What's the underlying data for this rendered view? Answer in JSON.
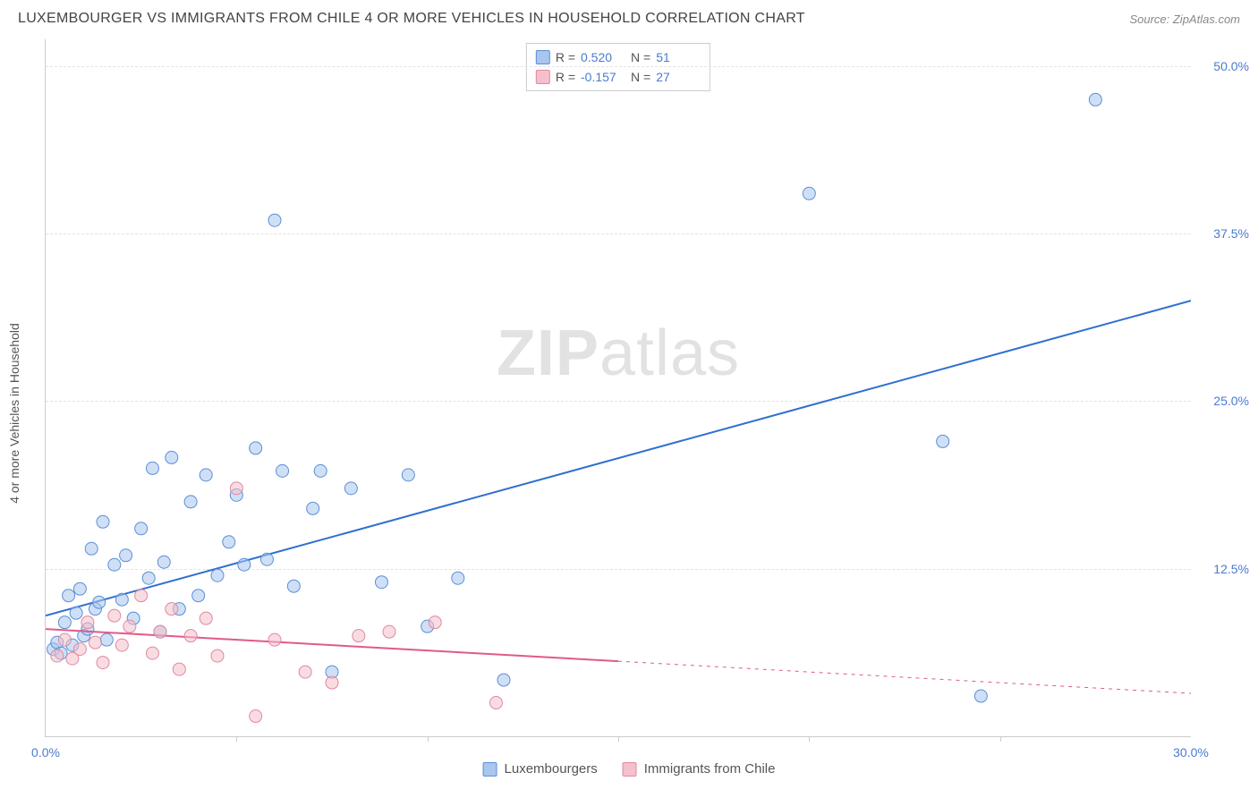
{
  "header": {
    "title": "LUXEMBOURGER VS IMMIGRANTS FROM CHILE 4 OR MORE VEHICLES IN HOUSEHOLD CORRELATION CHART",
    "source": "Source: ZipAtlas.com"
  },
  "chart": {
    "type": "scatter",
    "ylabel": "4 or more Vehicles in Household",
    "watermark": "ZIPatlas",
    "xlim": [
      0,
      30
    ],
    "ylim": [
      0,
      52
    ],
    "yticks": [
      {
        "v": 12.5,
        "label": "12.5%"
      },
      {
        "v": 25.0,
        "label": "25.0%"
      },
      {
        "v": 37.5,
        "label": "37.5%"
      },
      {
        "v": 50.0,
        "label": "50.0%"
      }
    ],
    "xticks_major": [
      {
        "v": 0,
        "label": "0.0%"
      },
      {
        "v": 30,
        "label": "30.0%"
      }
    ],
    "xticks_minor": [
      5,
      10,
      15,
      20,
      25
    ],
    "background_color": "#ffffff",
    "grid_color": "#e3e3e3",
    "axis_color": "#cccccc",
    "tick_label_color": "#4a7bd0",
    "marker_radius": 7,
    "marker_opacity": 0.55,
    "series": [
      {
        "id": "luxembourgers",
        "label": "Luxembourgers",
        "color_fill": "#a8c6ee",
        "color_stroke": "#5b8fd6",
        "trend_color": "#2f6fd0",
        "trend_width": 2,
        "R": "0.520",
        "N": "51",
        "trend": {
          "x1": 0,
          "y1": 9.0,
          "x2": 30,
          "y2": 32.5
        },
        "trend_dash_after_x": null,
        "points": [
          [
            0.2,
            6.5
          ],
          [
            0.3,
            7.0
          ],
          [
            0.4,
            6.2
          ],
          [
            0.5,
            8.5
          ],
          [
            0.6,
            10.5
          ],
          [
            0.7,
            6.8
          ],
          [
            0.8,
            9.2
          ],
          [
            0.9,
            11.0
          ],
          [
            1.0,
            7.5
          ],
          [
            1.1,
            8.0
          ],
          [
            1.2,
            14.0
          ],
          [
            1.3,
            9.5
          ],
          [
            1.4,
            10.0
          ],
          [
            1.5,
            16.0
          ],
          [
            1.6,
            7.2
          ],
          [
            1.8,
            12.8
          ],
          [
            2.0,
            10.2
          ],
          [
            2.1,
            13.5
          ],
          [
            2.3,
            8.8
          ],
          [
            2.5,
            15.5
          ],
          [
            2.7,
            11.8
          ],
          [
            2.8,
            20.0
          ],
          [
            3.0,
            7.8
          ],
          [
            3.1,
            13.0
          ],
          [
            3.3,
            20.8
          ],
          [
            3.5,
            9.5
          ],
          [
            3.8,
            17.5
          ],
          [
            4.0,
            10.5
          ],
          [
            4.2,
            19.5
          ],
          [
            4.5,
            12.0
          ],
          [
            4.8,
            14.5
          ],
          [
            5.0,
            18.0
          ],
          [
            5.2,
            12.8
          ],
          [
            5.5,
            21.5
          ],
          [
            5.8,
            13.2
          ],
          [
            6.0,
            38.5
          ],
          [
            6.2,
            19.8
          ],
          [
            6.5,
            11.2
          ],
          [
            7.0,
            17.0
          ],
          [
            7.2,
            19.8
          ],
          [
            7.5,
            4.8
          ],
          [
            8.0,
            18.5
          ],
          [
            8.8,
            11.5
          ],
          [
            9.5,
            19.5
          ],
          [
            10.0,
            8.2
          ],
          [
            10.8,
            11.8
          ],
          [
            12.0,
            4.2
          ],
          [
            20.0,
            40.5
          ],
          [
            23.5,
            22.0
          ],
          [
            24.5,
            3.0
          ],
          [
            27.5,
            47.5
          ]
        ]
      },
      {
        "id": "chile",
        "label": "Immigrants from Chile",
        "color_fill": "#f4c0cb",
        "color_stroke": "#e088a0",
        "trend_color": "#e05a88",
        "trend_width": 2,
        "R": "-0.157",
        "N": "27",
        "trend": {
          "x1": 0,
          "y1": 8.0,
          "x2": 30,
          "y2": 3.2
        },
        "trend_dash_after_x": 15,
        "points": [
          [
            0.3,
            6.0
          ],
          [
            0.5,
            7.2
          ],
          [
            0.7,
            5.8
          ],
          [
            0.9,
            6.5
          ],
          [
            1.1,
            8.5
          ],
          [
            1.3,
            7.0
          ],
          [
            1.5,
            5.5
          ],
          [
            1.8,
            9.0
          ],
          [
            2.0,
            6.8
          ],
          [
            2.2,
            8.2
          ],
          [
            2.5,
            10.5
          ],
          [
            2.8,
            6.2
          ],
          [
            3.0,
            7.8
          ],
          [
            3.3,
            9.5
          ],
          [
            3.5,
            5.0
          ],
          [
            3.8,
            7.5
          ],
          [
            4.2,
            8.8
          ],
          [
            4.5,
            6.0
          ],
          [
            5.0,
            18.5
          ],
          [
            5.5,
            1.5
          ],
          [
            6.0,
            7.2
          ],
          [
            6.8,
            4.8
          ],
          [
            7.5,
            4.0
          ],
          [
            8.2,
            7.5
          ],
          [
            9.0,
            7.8
          ],
          [
            10.2,
            8.5
          ],
          [
            11.8,
            2.5
          ]
        ]
      }
    ],
    "legend_top_labels": {
      "R": "R  =",
      "N": "N  ="
    },
    "legend_bottom": [
      {
        "series": "luxembourgers"
      },
      {
        "series": "chile"
      }
    ]
  }
}
